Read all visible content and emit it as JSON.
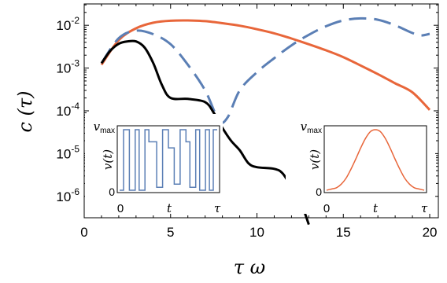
{
  "chart_data": [
    {
      "type": "line",
      "title": "",
      "xlabel": "τ ω",
      "ylabel": "c (τ)",
      "xlim": [
        0,
        20.5
      ],
      "ylim": [
        3.16e-07,
        0.0316
      ],
      "yscale": "log",
      "xticks": [
        0,
        5,
        10,
        15,
        20
      ],
      "xtick_labels": [
        "0",
        "5",
        "10",
        "15",
        "20"
      ],
      "yticks": [
        1e-06,
        1e-05,
        0.0001,
        0.001,
        0.01
      ],
      "ytick_bases": [
        "10",
        "10",
        "10",
        "10",
        "10"
      ],
      "ytick_exps": [
        "-6",
        "-5",
        "-4",
        "-3",
        "-2"
      ],
      "grid": false,
      "series": [
        {
          "color": "#e8663a",
          "dash": "solid",
          "x": [
            1,
            2,
            3,
            4,
            5,
            6,
            7,
            8,
            9,
            10,
            11,
            12,
            13,
            14,
            15,
            16,
            17,
            18,
            19,
            20
          ],
          "y": [
            0.0012,
            0.0045,
            0.0085,
            0.0115,
            0.0128,
            0.013,
            0.0125,
            0.0112,
            0.0098,
            0.0081,
            0.0065,
            0.0049,
            0.0036,
            0.0026,
            0.0018,
            0.00115,
            0.00072,
            0.00044,
            0.00027,
            0.000105
          ]
        },
        {
          "color": "#5b7fb5",
          "dash": "dashed",
          "x": [
            1,
            2,
            3,
            4,
            5,
            6,
            7,
            7.8,
            8.3,
            9,
            10,
            11,
            12,
            13,
            14,
            15,
            16,
            17,
            18,
            19,
            19.5,
            20
          ],
          "y": [
            0.0013,
            0.005,
            0.0075,
            0.0062,
            0.0036,
            0.0012,
            0.0003,
            6e-05,
            7e-05,
            0.0003,
            0.0008,
            0.0017,
            0.0034,
            0.006,
            0.0095,
            0.013,
            0.0145,
            0.0135,
            0.01,
            0.0066,
            0.0058,
            0.0063
          ]
        },
        {
          "color": "#000000",
          "dash": "solid",
          "x": [
            1,
            1.5,
            2,
            2.5,
            3,
            3.5,
            4,
            4.5,
            5,
            6,
            7,
            7.5,
            8,
            8.5,
            9,
            9.5,
            10,
            11,
            11.5,
            12,
            12.5,
            13
          ],
          "y": [
            0.0013,
            0.0025,
            0.0037,
            0.0042,
            0.0042,
            0.003,
            0.0013,
            0.0004,
            0.0002,
            0.00019,
            0.00016,
            9e-05,
            4e-05,
            2e-05,
            1.2e-05,
            6e-06,
            4.8e-06,
            4.4e-06,
            3.4e-06,
            1.6e-06,
            8e-07,
            2.2e-07
          ]
        }
      ]
    },
    {
      "type": "line",
      "title": "",
      "xlabel": "t",
      "ylabel": "v(t)",
      "x_tick_labels": [
        "0",
        "t",
        "τ"
      ],
      "y_tick_labels": [
        "0",
        "v",
        "max"
      ],
      "series": [
        {
          "color": "#5b7fb5",
          "dash": "solid",
          "x": [
            0,
            0.04,
            0.04,
            0.1,
            0.1,
            0.16,
            0.16,
            0.2,
            0.2,
            0.26,
            0.26,
            0.3,
            0.3,
            0.38,
            0.38,
            0.44,
            0.44,
            0.5,
            0.5,
            0.56,
            0.56,
            0.62,
            0.62,
            0.68,
            0.68,
            0.72,
            0.72,
            0.78,
            0.78,
            0.82,
            0.82,
            0.88,
            0.88,
            0.92,
            0.92,
            0.96,
            0.96,
            1
          ],
          "y": [
            0,
            0,
            1,
            1,
            0,
            0,
            1,
            1,
            0,
            0,
            1,
            1,
            0.8,
            0.8,
            0.05,
            0.05,
            1,
            1,
            0.7,
            0.7,
            0.1,
            0.1,
            1,
            1,
            0.8,
            0.8,
            0.05,
            0.05,
            1,
            1,
            0,
            0,
            1,
            1,
            0,
            0,
            1,
            1
          ]
        }
      ]
    },
    {
      "type": "line",
      "title": "",
      "xlabel": "t",
      "ylabel": "v(t)",
      "x_tick_labels": [
        "0",
        "t",
        "τ"
      ],
      "y_tick_labels": [
        "0",
        "v",
        "max"
      ],
      "series": [
        {
          "color": "#e8663a",
          "dash": "solid",
          "x": [
            0,
            0.05,
            0.1,
            0.15,
            0.2,
            0.25,
            0.3,
            0.35,
            0.4,
            0.45,
            0.5,
            0.55,
            0.6,
            0.65,
            0.7,
            0.75,
            0.8,
            0.85,
            0.9,
            0.95,
            1
          ],
          "y": [
            0.0,
            0.02,
            0.04,
            0.1,
            0.2,
            0.35,
            0.52,
            0.7,
            0.86,
            0.97,
            1.0,
            0.97,
            0.86,
            0.7,
            0.52,
            0.35,
            0.2,
            0.1,
            0.04,
            0.02,
            0.0
          ]
        }
      ]
    }
  ]
}
